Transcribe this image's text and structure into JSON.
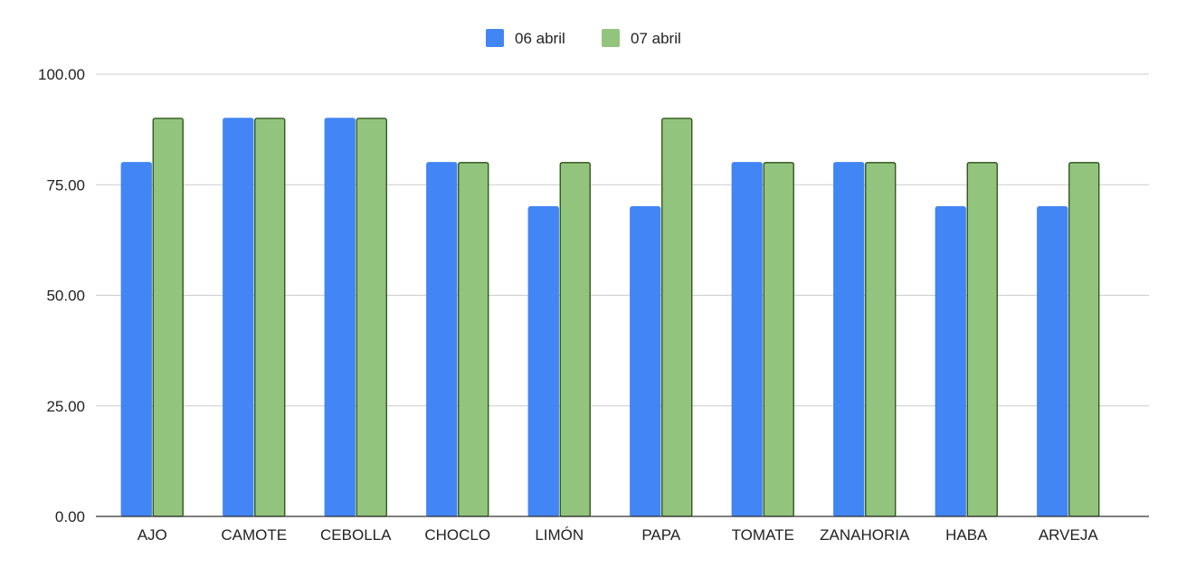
{
  "chart_data": {
    "type": "bar",
    "title": "",
    "xlabel": "",
    "ylabel": "",
    "categories": [
      "AJO",
      "CAMOTE",
      "CEBOLLA",
      "CHOCLO",
      "LIMÓN",
      "PAPA",
      "TOMATE",
      "ZANAHORIA",
      "HABA",
      "ARVEJA"
    ],
    "series": [
      {
        "name": "06 abril",
        "color": "#4285f4",
        "stroke": "#4285f4",
        "values": [
          80,
          90,
          90,
          80,
          70,
          70,
          80,
          80,
          70,
          70
        ]
      },
      {
        "name": "07 abril",
        "color": "#93c47d",
        "stroke": "#274e13",
        "values": [
          90,
          90,
          90,
          80,
          80,
          90,
          80,
          80,
          80,
          80
        ]
      }
    ],
    "ylim": [
      0,
      100
    ],
    "yticks": [
      0,
      25,
      50,
      75,
      100
    ],
    "ytick_labels": [
      "0.00",
      "25.00",
      "50.00",
      "75.00",
      "100.00"
    ],
    "grid": true,
    "legend": "top-center"
  }
}
